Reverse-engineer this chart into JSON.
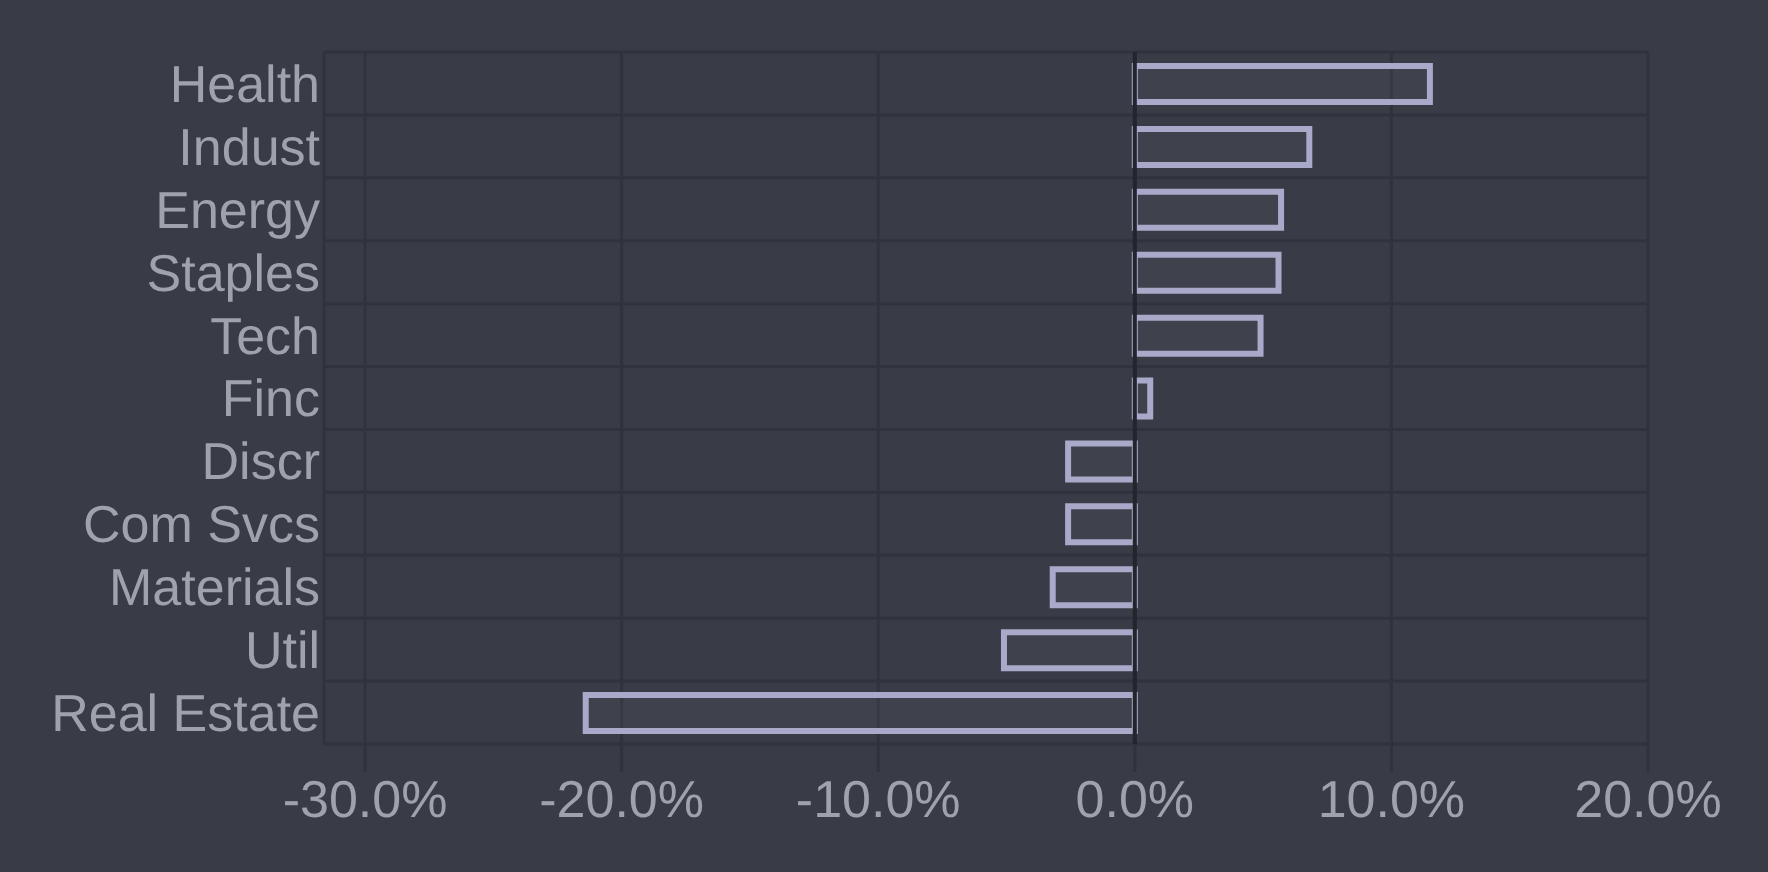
{
  "chart_data": {
    "type": "bar",
    "orientation": "horizontal",
    "categories": [
      "Health",
      "Indust",
      "Energy",
      "Staples",
      "Tech",
      "Finc",
      "Discr",
      "Com Svcs",
      "Materials",
      "Util",
      "Real Estate"
    ],
    "values": [
      11.5,
      6.8,
      5.7,
      5.6,
      4.9,
      0.6,
      -2.6,
      -2.6,
      -3.2,
      -5.1,
      -21.4
    ],
    "color": "#a9a9c9",
    "xlim": [
      -31.6,
      20
    ],
    "xticks": [
      {
        "value": -30,
        "label": "-30.0%"
      },
      {
        "value": -20,
        "label": "-20.0%"
      },
      {
        "value": -10,
        "label": "-10.0%"
      },
      {
        "value": 0,
        "label": "0.0%"
      },
      {
        "value": 10,
        "label": "10.0%"
      },
      {
        "value": 20,
        "label": "20.0%"
      }
    ],
    "grid": true,
    "ref_lines": [
      {
        "axis": "x",
        "value": 0,
        "color": "#23252c"
      }
    ]
  }
}
